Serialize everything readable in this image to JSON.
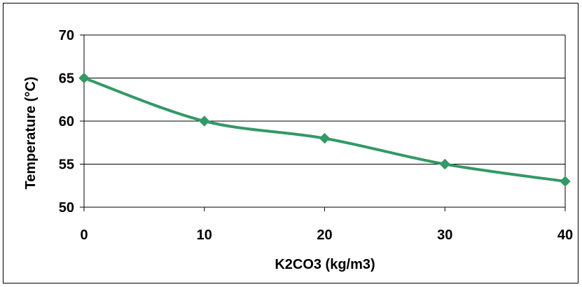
{
  "chart_data": {
    "type": "line",
    "title": "",
    "xlabel": "K2CO3 (kg/m3)",
    "ylabel": "Temperature (°C)",
    "x": [
      0,
      10,
      20,
      30,
      40
    ],
    "series": [
      {
        "values": [
          65,
          60,
          58,
          55,
          53
        ],
        "color": "#339966"
      }
    ],
    "xlim": [
      0,
      40
    ],
    "ylim": [
      50,
      70
    ],
    "xticks": [
      0,
      10,
      20,
      30,
      40
    ],
    "yticks": [
      50,
      55,
      60,
      65,
      70
    ],
    "grid": "horizontal",
    "legend": "none",
    "smooth": true
  }
}
